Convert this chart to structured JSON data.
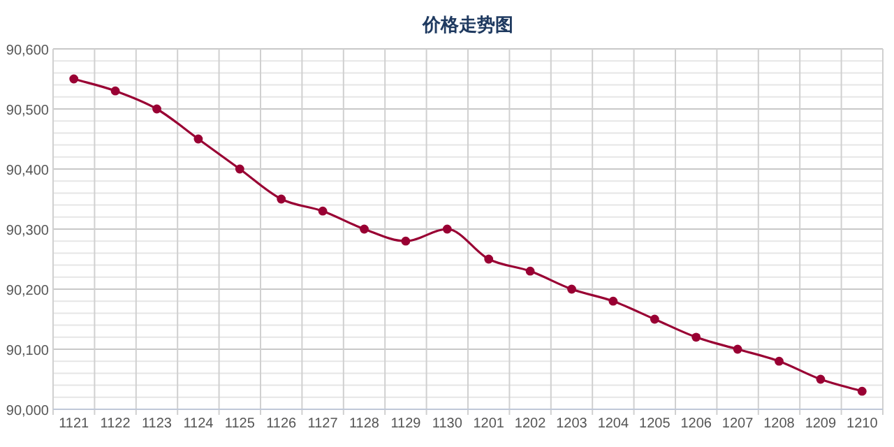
{
  "chart_data": {
    "type": "line",
    "title": "价格走势图",
    "categories": [
      "1121",
      "1122",
      "1123",
      "1124",
      "1125",
      "1126",
      "1127",
      "1128",
      "1129",
      "1130",
      "1201",
      "1202",
      "1203",
      "1204",
      "1205",
      "1206",
      "1207",
      "1208",
      "1209",
      "1210"
    ],
    "series": [
      {
        "color": "#990033",
        "values": [
          90550,
          90530,
          90500,
          90450,
          90400,
          90350,
          90330,
          90300,
          90280,
          90300,
          90250,
          90230,
          90200,
          90180,
          90150,
          90120,
          90100,
          90080,
          90050,
          90030
        ]
      }
    ],
    "ylim": [
      90000,
      90600
    ],
    "yticks": [
      {
        "value": 90000,
        "label": "90,000"
      },
      {
        "value": 90020,
        "label": null
      },
      {
        "value": 90040,
        "label": null
      },
      {
        "value": 90060,
        "label": null
      },
      {
        "value": 90080,
        "label": null
      },
      {
        "value": 90100,
        "label": "90,100"
      },
      {
        "value": 90120,
        "label": null
      },
      {
        "value": 90140,
        "label": null
      },
      {
        "value": 90160,
        "label": null
      },
      {
        "value": 90180,
        "label": null
      },
      {
        "value": 90200,
        "label": "90,200"
      },
      {
        "value": 90220,
        "label": null
      },
      {
        "value": 90240,
        "label": null
      },
      {
        "value": 90260,
        "label": null
      },
      {
        "value": 90280,
        "label": null
      },
      {
        "value": 90300,
        "label": "90,300"
      },
      {
        "value": 90320,
        "label": null
      },
      {
        "value": 90340,
        "label": null
      },
      {
        "value": 90360,
        "label": null
      },
      {
        "value": 90380,
        "label": null
      },
      {
        "value": 90400,
        "label": "90,400"
      },
      {
        "value": 90420,
        "label": null
      },
      {
        "value": 90440,
        "label": null
      },
      {
        "value": 90460,
        "label": null
      },
      {
        "value": 90480,
        "label": null
      },
      {
        "value": 90500,
        "label": "90,500"
      },
      {
        "value": 90520,
        "label": null
      },
      {
        "value": 90540,
        "label": null
      },
      {
        "value": 90560,
        "label": null
      },
      {
        "value": 90580,
        "label": null
      },
      {
        "value": 90600,
        "label": "90,600"
      }
    ],
    "grid": true,
    "marker": "circle",
    "line_style": "solid"
  }
}
